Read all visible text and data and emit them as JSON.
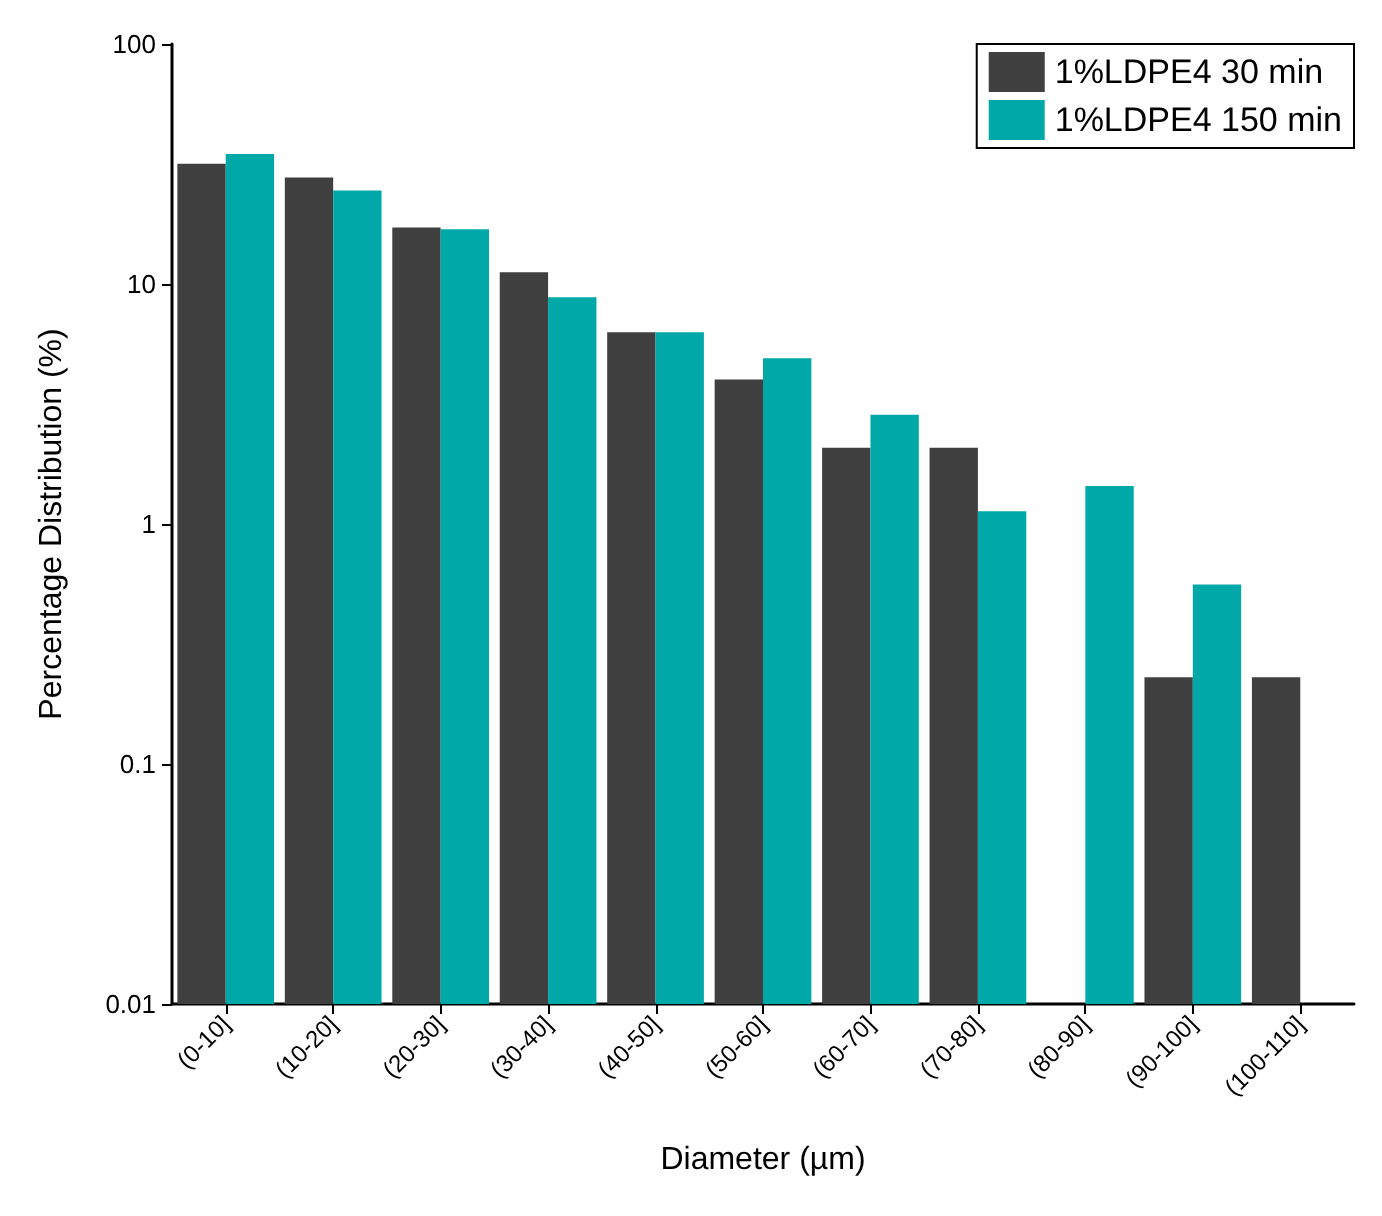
{
  "chart_data": {
    "type": "bar",
    "xlabel": "Diameter (µm)",
    "ylabel": "Percentage Distribution (%)",
    "categories": [
      "(0-10]",
      "(10-20]",
      "(20-30]",
      "(30-40]",
      "(40-50]",
      "(50-60]",
      "(60-70]",
      "(70-80]",
      "(80-90]",
      "(90-100]",
      "(100-110]"
    ],
    "series": [
      {
        "name": "1%LDPE4 30 min",
        "color": "#404040",
        "values": [
          31.7,
          27.8,
          17.2,
          11.2,
          6.3,
          4.0,
          2.08,
          2.08,
          null,
          0.23,
          0.23
        ]
      },
      {
        "name": "1%LDPE4 150 min",
        "color": "#00a8a8",
        "values": [
          34.8,
          24.5,
          16.9,
          8.8,
          6.3,
          4.9,
          2.85,
          1.13,
          1.44,
          0.56,
          null
        ]
      }
    ],
    "log": true,
    "ylim": [
      0.01,
      100
    ],
    "yticks": [
      0.01,
      0.1,
      1,
      10,
      100
    ],
    "grid": false,
    "legend": "top right"
  }
}
